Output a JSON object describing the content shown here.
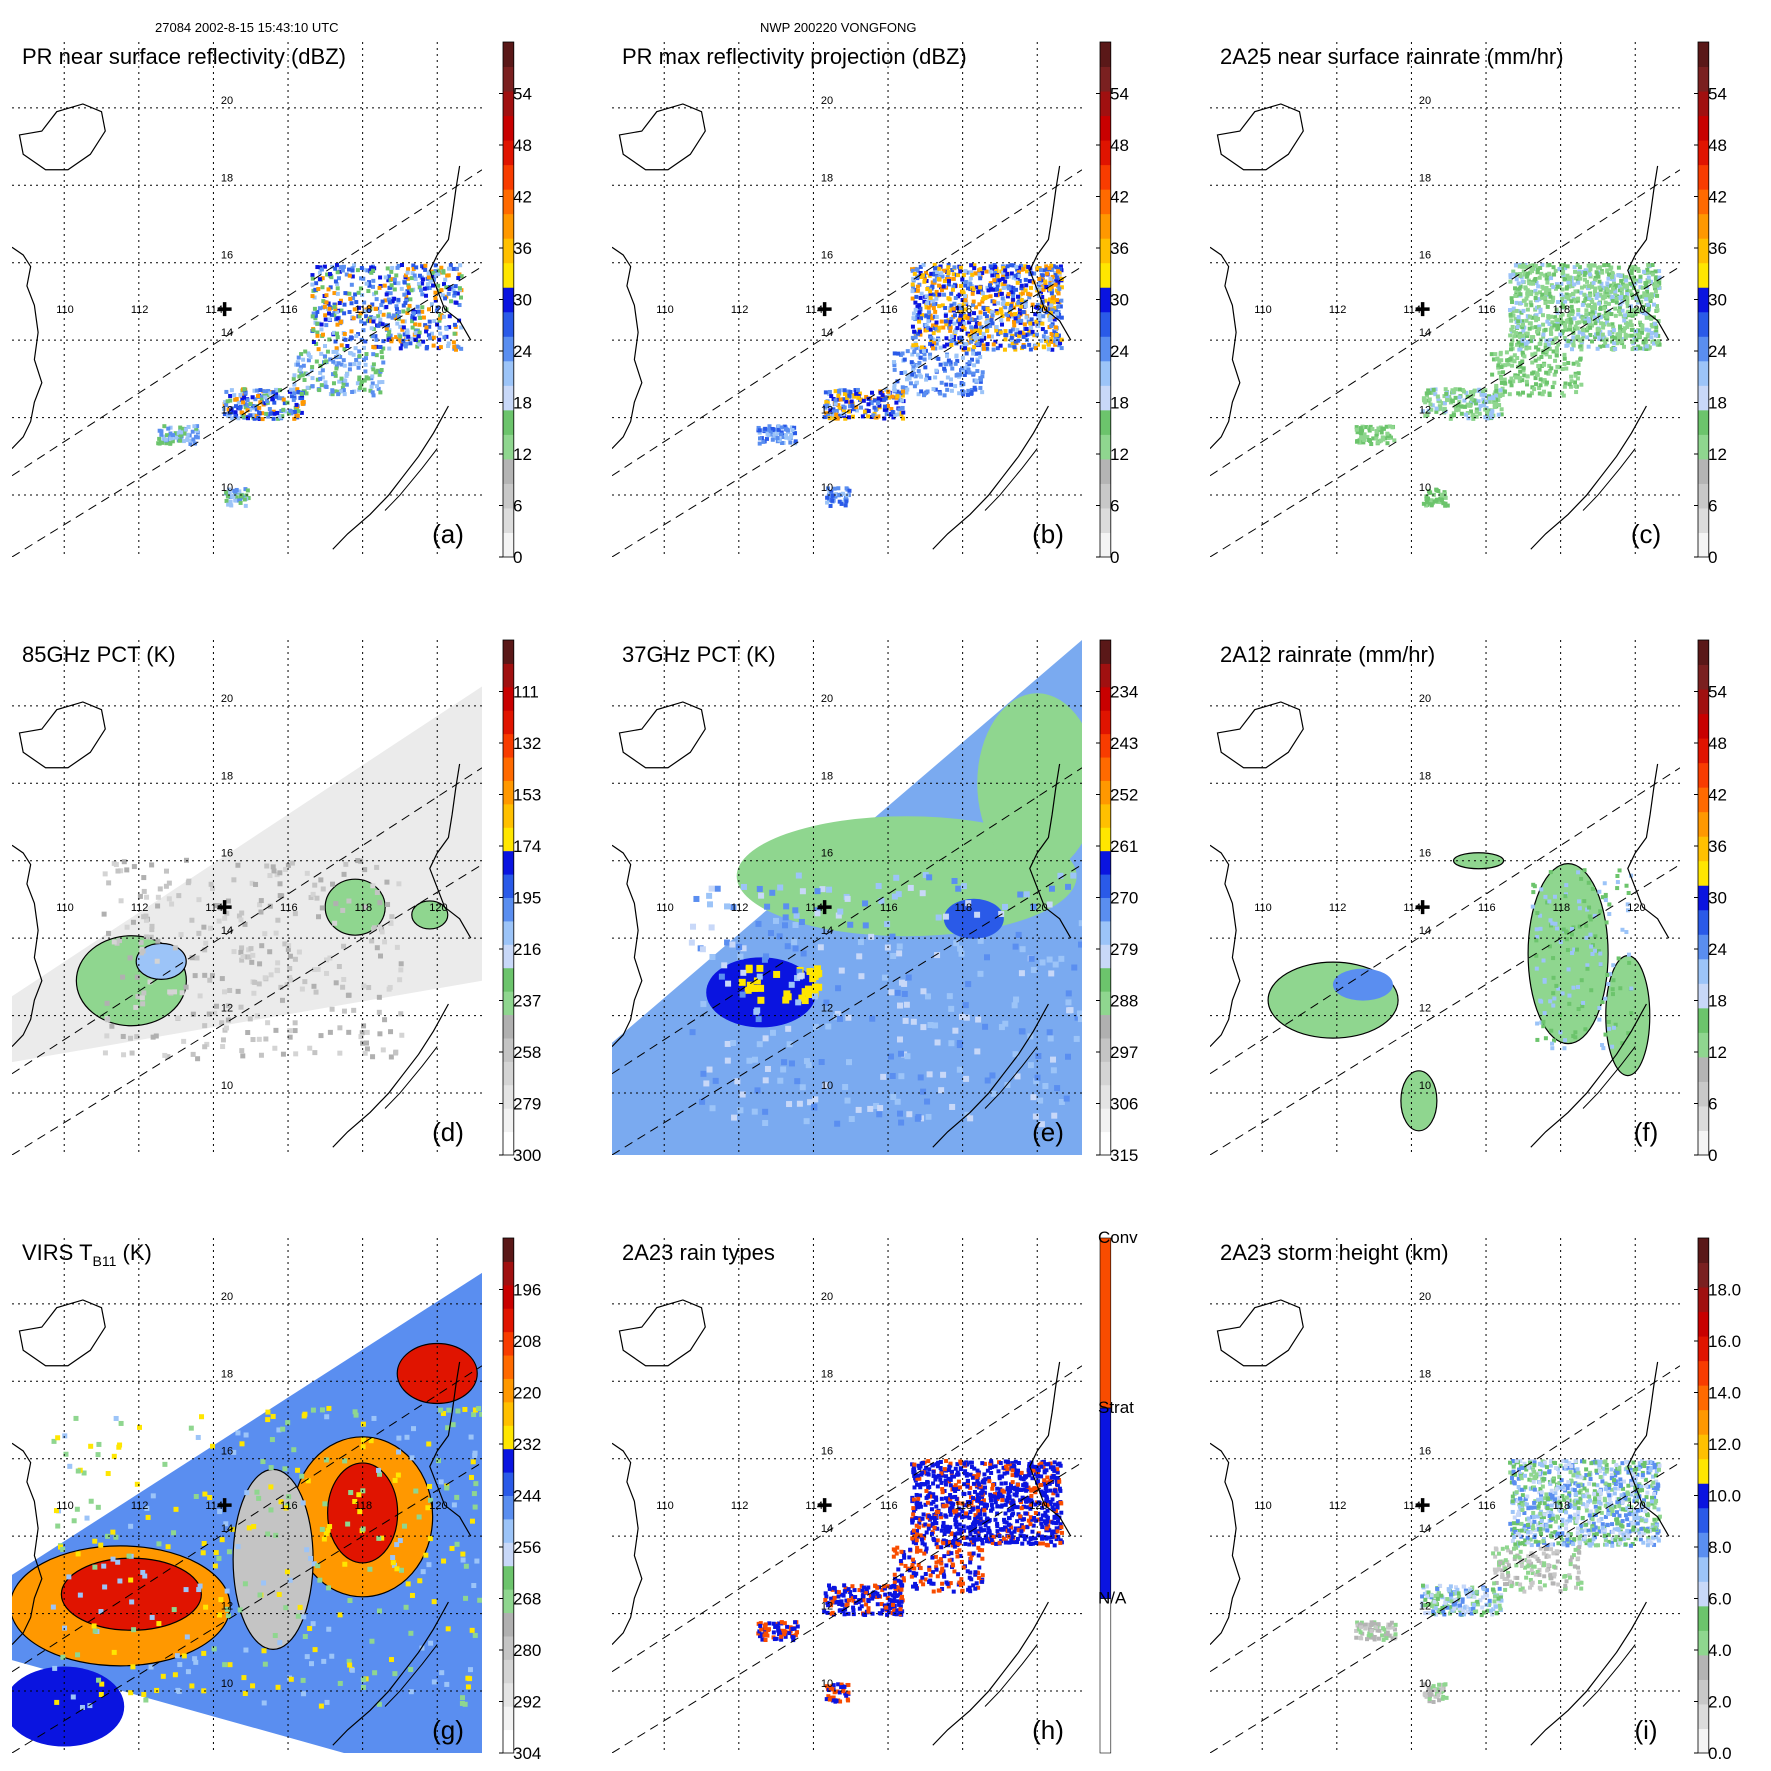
{
  "header": {
    "left": "27084 2002-8-15 15:43:10 UTC",
    "center": "NWP 200220 VONGFONG"
  },
  "map": {
    "lon_labels": [
      "110",
      "112",
      "114",
      "116",
      "118",
      "120"
    ],
    "lat_labels": [
      "10",
      "12",
      "14",
      "16",
      "18",
      "20"
    ]
  },
  "colors": {
    "scale": [
      "#f4f4f4",
      "#dcdcdc",
      "#c8c8c8",
      "#b4b4b4",
      "#8fd68f",
      "#6cc46c",
      "#c8d8f8",
      "#9cc4f8",
      "#5a8ef0",
      "#2a5ae8",
      "#0a14e0",
      "#ffe600",
      "#ffc000",
      "#ff9800",
      "#ff6a00",
      "#f83c00",
      "#e01400",
      "#c80000",
      "#a01010",
      "#7a2020",
      "#5a1818"
    ],
    "gray_scale": [
      "#ffffff",
      "#f2f2f2",
      "#e4e4e4",
      "#d4d4d4",
      "#c4c4c4",
      "#b0b0b0",
      "#8fd68f",
      "#6cc46c",
      "#c8d8f8",
      "#9cc4f8",
      "#5a8ef0",
      "#2a5ae8",
      "#0a14e0",
      "#ffe600",
      "#ffc000",
      "#ff9800",
      "#ff6a00",
      "#f83c00",
      "#e01400",
      "#c80000",
      "#a01010",
      "#5a1818"
    ],
    "rain_type": [
      "#ffffff",
      "#0a14e0",
      "#f84c00"
    ]
  },
  "panels": [
    {
      "id": "a",
      "label": "(a)",
      "title": "PR near surface reflectivity (dBZ)",
      "title_sub": "",
      "title_tail": "",
      "colorbar": {
        "type": "scale",
        "ticks": [
          "0",
          "6",
          "12",
          "18",
          "24",
          "30",
          "36",
          "42",
          "48",
          "54"
        ]
      }
    },
    {
      "id": "b",
      "label": "(b)",
      "title": "PR max reflectivity projection (dBZ)",
      "title_sub": "",
      "title_tail": "",
      "colorbar": {
        "type": "scale",
        "ticks": [
          "0",
          "6",
          "12",
          "18",
          "24",
          "30",
          "36",
          "42",
          "48",
          "54"
        ]
      }
    },
    {
      "id": "c",
      "label": "(c)",
      "title": "2A25 near surface rainrate (mm/hr)",
      "title_sub": "",
      "title_tail": "",
      "colorbar": {
        "type": "scale",
        "ticks": [
          "0",
          "6",
          "12",
          "18",
          "24",
          "30",
          "36",
          "42",
          "48",
          "54"
        ]
      }
    },
    {
      "id": "d",
      "label": "(d)",
      "title": "85GHz PCT (K)",
      "title_sub": "",
      "title_tail": "",
      "colorbar": {
        "type": "gray_scale",
        "ticks": [
          "300",
          "279",
          "258",
          "237",
          "216",
          "195",
          "174",
          "153",
          "132",
          "111"
        ]
      }
    },
    {
      "id": "e",
      "label": "(e)",
      "title": "37GHz PCT (K)",
      "title_sub": "",
      "title_tail": "",
      "colorbar": {
        "type": "gray_scale",
        "ticks": [
          "315",
          "306",
          "297",
          "288",
          "279",
          "270",
          "261",
          "252",
          "243",
          "234"
        ]
      }
    },
    {
      "id": "f",
      "label": "(f)",
      "title": "2A12 rainrate (mm/hr)",
      "title_sub": "",
      "title_tail": "",
      "colorbar": {
        "type": "scale",
        "ticks": [
          "0",
          "6",
          "12",
          "18",
          "24",
          "30",
          "36",
          "42",
          "48",
          "54"
        ]
      }
    },
    {
      "id": "g",
      "label": "(g)",
      "title": "VIRS T",
      "title_sub": "B11",
      "title_tail": " (K)",
      "colorbar": {
        "type": "gray_scale",
        "ticks": [
          "304",
          "292",
          "280",
          "268",
          "256",
          "244",
          "232",
          "220",
          "208",
          "196"
        ]
      }
    },
    {
      "id": "h",
      "label": "(h)",
      "title": "2A23 rain types",
      "title_sub": "",
      "title_tail": "",
      "colorbar": {
        "type": "rain_type",
        "ticks": [
          "N/A",
          "Strat",
          "Conv"
        ]
      }
    },
    {
      "id": "i",
      "label": "(i)",
      "title": "2A23 storm height (km)",
      "title_sub": "",
      "title_tail": "",
      "colorbar": {
        "type": "scale",
        "ticks": [
          "0.0",
          "2.0",
          "4.0",
          "6.0",
          "8.0",
          "10.0",
          "12.0",
          "14.0",
          "16.0",
          "18.0"
        ]
      }
    }
  ]
}
